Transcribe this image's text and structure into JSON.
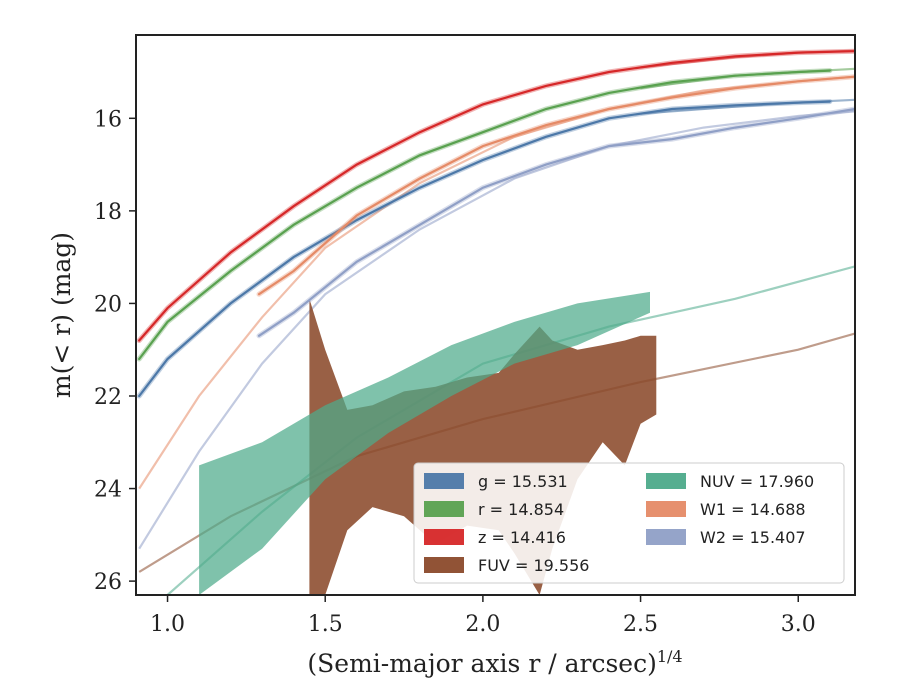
{
  "chart_data": {
    "type": "line",
    "xlabel": "(Semi-major axis r / arcsec)",
    "xlabel_sup": "1/4",
    "ylabel": "m(< r) (mag)",
    "xlim": [
      0.9,
      3.18
    ],
    "ylim": [
      26.3,
      14.2
    ],
    "y_inverted": true,
    "xticks": [
      1.0,
      1.5,
      2.0,
      2.5,
      3.0
    ],
    "xtick_labels": [
      "1.0",
      "1.5",
      "2.0",
      "2.5",
      "3.0"
    ],
    "yticks": [
      16,
      18,
      20,
      22,
      24,
      26
    ],
    "ytick_labels": [
      "16",
      "18",
      "20",
      "22",
      "24",
      "26"
    ],
    "grid": false,
    "legend_position": "lower-right",
    "legend_columns": 2,
    "series": [
      {
        "name": "g = 15.531",
        "color": "#4c78a8",
        "points": [
          [
            0.91,
            22.0
          ],
          [
            1.0,
            21.2
          ],
          [
            1.2,
            20.0
          ],
          [
            1.4,
            19.0
          ],
          [
            1.6,
            18.2
          ],
          [
            1.8,
            17.5
          ],
          [
            2.0,
            16.9
          ],
          [
            2.2,
            16.4
          ],
          [
            2.4,
            16.0
          ],
          [
            2.6,
            15.8
          ],
          [
            2.8,
            15.72
          ],
          [
            3.0,
            15.66
          ],
          [
            3.1,
            15.64
          ]
        ],
        "model_points": [
          [
            2.5,
            15.9
          ],
          [
            2.8,
            15.75
          ],
          [
            3.0,
            15.66
          ],
          [
            3.18,
            15.6
          ]
        ]
      },
      {
        "name": "r = 14.854",
        "color": "#59a14f",
        "points": [
          [
            0.91,
            21.2
          ],
          [
            1.0,
            20.4
          ],
          [
            1.2,
            19.3
          ],
          [
            1.4,
            18.3
          ],
          [
            1.6,
            17.5
          ],
          [
            1.8,
            16.8
          ],
          [
            2.0,
            16.3
          ],
          [
            2.2,
            15.8
          ],
          [
            2.4,
            15.45
          ],
          [
            2.6,
            15.22
          ],
          [
            2.8,
            15.08
          ],
          [
            3.0,
            15.0
          ],
          [
            3.1,
            14.97
          ]
        ],
        "model_points": [
          [
            2.5,
            15.35
          ],
          [
            2.8,
            15.08
          ],
          [
            3.0,
            15.0
          ],
          [
            3.18,
            14.93
          ]
        ]
      },
      {
        "name": "z = 14.416",
        "color": "#d62728",
        "points": [
          [
            0.91,
            20.8
          ],
          [
            1.0,
            20.1
          ],
          [
            1.2,
            18.9
          ],
          [
            1.4,
            17.9
          ],
          [
            1.6,
            17.0
          ],
          [
            1.8,
            16.3
          ],
          [
            2.0,
            15.7
          ],
          [
            2.2,
            15.3
          ],
          [
            2.4,
            15.0
          ],
          [
            2.6,
            14.8
          ],
          [
            2.8,
            14.66
          ],
          [
            3.0,
            14.58
          ],
          [
            3.18,
            14.55
          ]
        ],
        "model_points": [
          [
            2.5,
            14.9
          ],
          [
            2.8,
            14.68
          ],
          [
            3.0,
            14.58
          ],
          [
            3.18,
            14.54
          ]
        ]
      },
      {
        "name": "FUV = 19.556",
        "color": "#8b4a2b",
        "band": [
          [
            1.45,
            19.9,
            26.3
          ],
          [
            1.5,
            21.0,
            26.3
          ],
          [
            1.57,
            22.3,
            24.9
          ],
          [
            1.65,
            22.2,
            24.4
          ],
          [
            1.75,
            21.9,
            24.6
          ],
          [
            1.85,
            21.8,
            25.2
          ],
          [
            1.95,
            21.6,
            24.8
          ],
          [
            2.05,
            21.5,
            24.9
          ],
          [
            2.1,
            21.1,
            25.4
          ],
          [
            2.18,
            20.5,
            26.3
          ],
          [
            2.22,
            20.8,
            25.3
          ],
          [
            2.3,
            21.0,
            23.8
          ],
          [
            2.38,
            20.9,
            23.0
          ],
          [
            2.45,
            20.8,
            23.5
          ],
          [
            2.5,
            20.7,
            22.6
          ],
          [
            2.55,
            20.7,
            22.4
          ]
        ],
        "model_points": [
          [
            0.91,
            25.8
          ],
          [
            1.2,
            24.6
          ],
          [
            1.6,
            23.3
          ],
          [
            2.0,
            22.5
          ],
          [
            2.5,
            21.7
          ],
          [
            3.0,
            21.0
          ],
          [
            3.18,
            20.65
          ]
        ]
      },
      {
        "name": "NUV = 17.960",
        "color": "#4daa8a",
        "band": [
          [
            1.1,
            23.5,
            26.3
          ],
          [
            1.3,
            23.0,
            25.3
          ],
          [
            1.5,
            22.2,
            23.8
          ],
          [
            1.7,
            21.6,
            22.8
          ],
          [
            1.9,
            20.9,
            22.0
          ],
          [
            2.1,
            20.4,
            21.3
          ],
          [
            2.3,
            20.0,
            20.9
          ],
          [
            2.53,
            19.75,
            20.2
          ]
        ],
        "model_points": [
          [
            1.0,
            26.3
          ],
          [
            1.3,
            24.5
          ],
          [
            1.6,
            22.9
          ],
          [
            2.0,
            21.3
          ],
          [
            2.4,
            20.5
          ],
          [
            2.8,
            19.9
          ],
          [
            3.18,
            19.2
          ]
        ]
      },
      {
        "name": "W1 = 14.688",
        "color": "#e58a66",
        "points": [
          [
            1.29,
            19.8
          ],
          [
            1.4,
            19.3
          ],
          [
            1.6,
            18.1
          ],
          [
            1.8,
            17.3
          ],
          [
            2.0,
            16.6
          ],
          [
            2.2,
            16.15
          ],
          [
            2.4,
            15.8
          ],
          [
            2.6,
            15.55
          ],
          [
            2.8,
            15.35
          ],
          [
            3.0,
            15.2
          ],
          [
            3.18,
            15.1
          ]
        ],
        "model_points": [
          [
            0.91,
            24.0
          ],
          [
            1.1,
            22.0
          ],
          [
            1.3,
            20.3
          ],
          [
            1.5,
            18.8
          ],
          [
            1.8,
            17.4
          ],
          [
            2.1,
            16.4
          ],
          [
            2.4,
            15.8
          ],
          [
            2.7,
            15.4
          ],
          [
            3.0,
            15.2
          ],
          [
            3.18,
            15.1
          ]
        ]
      },
      {
        "name": "W2 = 15.407",
        "color": "#8f9fc6",
        "points": [
          [
            1.29,
            20.7
          ],
          [
            1.4,
            20.2
          ],
          [
            1.6,
            19.1
          ],
          [
            1.8,
            18.3
          ],
          [
            2.0,
            17.5
          ],
          [
            2.2,
            17.0
          ],
          [
            2.4,
            16.6
          ],
          [
            2.6,
            16.45
          ],
          [
            2.8,
            16.2
          ],
          [
            3.0,
            16.0
          ],
          [
            3.18,
            15.8
          ]
        ],
        "model_points": [
          [
            0.91,
            25.3
          ],
          [
            1.1,
            23.2
          ],
          [
            1.3,
            21.3
          ],
          [
            1.5,
            19.8
          ],
          [
            1.8,
            18.4
          ],
          [
            2.1,
            17.3
          ],
          [
            2.4,
            16.6
          ],
          [
            2.7,
            16.2
          ],
          [
            3.0,
            15.95
          ],
          [
            3.18,
            15.85
          ]
        ]
      }
    ],
    "legend": [
      {
        "label": "g = 15.531",
        "color": "#4c78a8",
        "col": 0,
        "row": 0
      },
      {
        "label": "r = 14.854",
        "color": "#59a14f",
        "col": 0,
        "row": 1
      },
      {
        "label": "z = 14.416",
        "color": "#d62728",
        "col": 0,
        "row": 2
      },
      {
        "label": "FUV = 19.556",
        "color": "#8b4a2b",
        "col": 0,
        "row": 3
      },
      {
        "label": "NUV = 17.960",
        "color": "#4daa8a",
        "col": 1,
        "row": 0
      },
      {
        "label": "W1 = 14.688",
        "color": "#e58a66",
        "col": 1,
        "row": 1
      },
      {
        "label": "W2 = 15.407",
        "color": "#8f9fc6",
        "col": 1,
        "row": 2
      }
    ]
  }
}
